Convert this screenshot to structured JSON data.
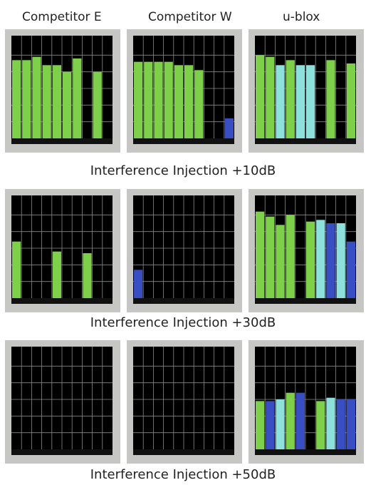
{
  "columns": [
    "Competitor E",
    "Competitor W",
    "u-blox"
  ],
  "captions": [
    "Interference Injection +10dB",
    "Interference Injection +30dB",
    "Interference Injection +50dB"
  ],
  "colors": {
    "gps": "#7ed04a",
    "sbas": "#8ee0dc",
    "glonass": "#3a4ec4",
    "plot_bg": "#000000",
    "grid": "#8a8a8a",
    "frame": "#c6c6c4"
  },
  "chart_data": [
    {
      "type": "bar",
      "row": 0,
      "receiver": "Competitor E",
      "ylim": [
        0,
        60
      ],
      "grid": true,
      "bars": [
        {
          "v": 47,
          "c": "gps"
        },
        {
          "v": 47,
          "c": "gps"
        },
        {
          "v": 49,
          "c": "gps"
        },
        {
          "v": 44,
          "c": "gps"
        },
        {
          "v": 44,
          "c": "gps"
        },
        {
          "v": 40,
          "c": "gps"
        },
        {
          "v": 48,
          "c": "gps"
        },
        {
          "v": 0,
          "c": "gps"
        },
        {
          "v": 40,
          "c": "gps"
        },
        {
          "v": 0,
          "c": "gps"
        }
      ]
    },
    {
      "type": "bar",
      "row": 0,
      "receiver": "Competitor W",
      "ylim": [
        0,
        60
      ],
      "grid": true,
      "bars": [
        {
          "v": 46,
          "c": "gps"
        },
        {
          "v": 46,
          "c": "gps"
        },
        {
          "v": 46,
          "c": "gps"
        },
        {
          "v": 46,
          "c": "gps"
        },
        {
          "v": 44,
          "c": "gps"
        },
        {
          "v": 44,
          "c": "gps"
        },
        {
          "v": 41,
          "c": "gps"
        },
        {
          "v": 0,
          "c": "gps"
        },
        {
          "v": 0,
          "c": "gps"
        },
        {
          "v": 12,
          "c": "glonass"
        }
      ]
    },
    {
      "type": "bar",
      "row": 0,
      "receiver": "u-blox",
      "ylim": [
        0,
        60
      ],
      "grid": true,
      "bars": [
        {
          "v": 50,
          "c": "gps"
        },
        {
          "v": 49,
          "c": "gps"
        },
        {
          "v": 44,
          "c": "sbas"
        },
        {
          "v": 47,
          "c": "gps"
        },
        {
          "v": 44,
          "c": "sbas"
        },
        {
          "v": 44,
          "c": "sbas"
        },
        {
          "v": 0,
          "c": "gps"
        },
        {
          "v": 47,
          "c": "gps"
        },
        {
          "v": 0,
          "c": "gps"
        },
        {
          "v": 45,
          "c": "gps"
        }
      ]
    },
    {
      "type": "bar",
      "row": 1,
      "receiver": "Competitor E",
      "ylim": [
        0,
        60
      ],
      "grid": true,
      "bars": [
        {
          "v": 34,
          "c": "gps"
        },
        {
          "v": 0,
          "c": "gps"
        },
        {
          "v": 0,
          "c": "gps"
        },
        {
          "v": 0,
          "c": "gps"
        },
        {
          "v": 28,
          "c": "gps"
        },
        {
          "v": 0,
          "c": "gps"
        },
        {
          "v": 0,
          "c": "gps"
        },
        {
          "v": 27,
          "c": "gps"
        },
        {
          "v": 0,
          "c": "gps"
        },
        {
          "v": 0,
          "c": "gps"
        }
      ]
    },
    {
      "type": "bar",
      "row": 1,
      "receiver": "Competitor W",
      "ylim": [
        0,
        60
      ],
      "grid": true,
      "bars": [
        {
          "v": 17,
          "c": "glonass"
        },
        {
          "v": 0,
          "c": "gps"
        },
        {
          "v": 0,
          "c": "gps"
        },
        {
          "v": 0,
          "c": "gps"
        },
        {
          "v": 0,
          "c": "gps"
        },
        {
          "v": 0,
          "c": "gps"
        },
        {
          "v": 0,
          "c": "gps"
        },
        {
          "v": 0,
          "c": "gps"
        },
        {
          "v": 0,
          "c": "gps"
        },
        {
          "v": 0,
          "c": "gps"
        }
      ]
    },
    {
      "type": "bar",
      "row": 1,
      "receiver": "u-blox",
      "ylim": [
        0,
        60
      ],
      "grid": true,
      "bars": [
        {
          "v": 52,
          "c": "gps"
        },
        {
          "v": 49,
          "c": "gps"
        },
        {
          "v": 44,
          "c": "gps"
        },
        {
          "v": 50,
          "c": "gps"
        },
        {
          "v": 0,
          "c": "gps"
        },
        {
          "v": 46,
          "c": "gps"
        },
        {
          "v": 47,
          "c": "sbas"
        },
        {
          "v": 45,
          "c": "glonass"
        },
        {
          "v": 45,
          "c": "sbas"
        },
        {
          "v": 34,
          "c": "glonass"
        }
      ]
    },
    {
      "type": "bar",
      "row": 2,
      "receiver": "Competitor E",
      "ylim": [
        0,
        60
      ],
      "grid": true,
      "bars": [
        {
          "v": 0,
          "c": "gps"
        },
        {
          "v": 0,
          "c": "gps"
        },
        {
          "v": 0,
          "c": "gps"
        },
        {
          "v": 0,
          "c": "gps"
        },
        {
          "v": 0,
          "c": "gps"
        },
        {
          "v": 0,
          "c": "gps"
        },
        {
          "v": 0,
          "c": "gps"
        },
        {
          "v": 0,
          "c": "gps"
        },
        {
          "v": 0,
          "c": "gps"
        },
        {
          "v": 0,
          "c": "gps"
        }
      ]
    },
    {
      "type": "bar",
      "row": 2,
      "receiver": "Competitor W",
      "ylim": [
        0,
        60
      ],
      "grid": true,
      "bars": [
        {
          "v": 0,
          "c": "gps"
        },
        {
          "v": 0,
          "c": "gps"
        },
        {
          "v": 0,
          "c": "gps"
        },
        {
          "v": 0,
          "c": "gps"
        },
        {
          "v": 0,
          "c": "gps"
        },
        {
          "v": 0,
          "c": "gps"
        },
        {
          "v": 0,
          "c": "gps"
        },
        {
          "v": 0,
          "c": "gps"
        },
        {
          "v": 0,
          "c": "gps"
        },
        {
          "v": 0,
          "c": "gps"
        }
      ]
    },
    {
      "type": "bar",
      "row": 2,
      "receiver": "u-blox",
      "ylim": [
        0,
        60
      ],
      "grid": true,
      "bars": [
        {
          "v": 29,
          "c": "gps"
        },
        {
          "v": 29,
          "c": "glonass"
        },
        {
          "v": 30,
          "c": "sbas"
        },
        {
          "v": 34,
          "c": "gps"
        },
        {
          "v": 34,
          "c": "glonass"
        },
        {
          "v": 0,
          "c": "gps"
        },
        {
          "v": 29,
          "c": "gps"
        },
        {
          "v": 31,
          "c": "sbas"
        },
        {
          "v": 30,
          "c": "glonass"
        },
        {
          "v": 30,
          "c": "glonass"
        }
      ]
    }
  ]
}
